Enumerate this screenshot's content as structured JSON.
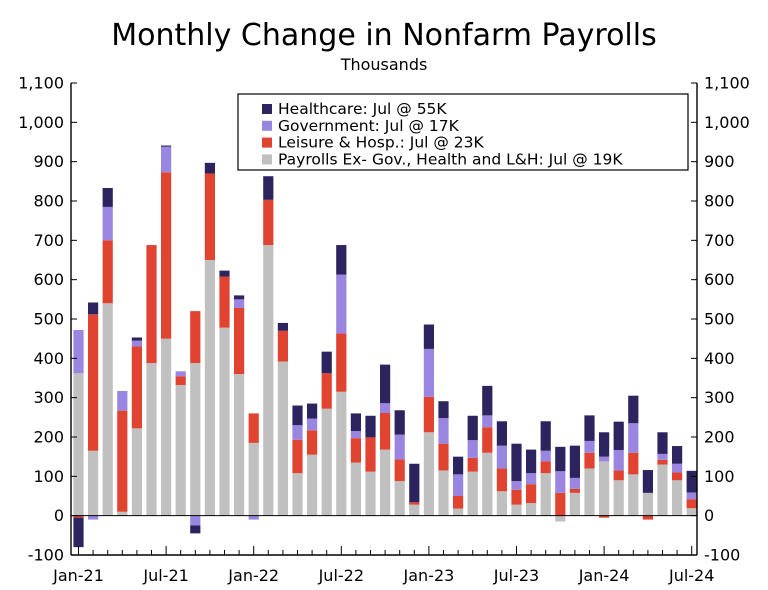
{
  "chart_data": {
    "type": "bar",
    "stacked": true,
    "title": "Monthly Change in Nonfarm Payrolls",
    "subtitle": "Thousands",
    "ylim": [
      -100,
      1100
    ],
    "yticks": [
      -100,
      0,
      100,
      200,
      300,
      400,
      500,
      600,
      700,
      800,
      900,
      1000,
      1100
    ],
    "ytick_labels": [
      "-100",
      "0",
      "100",
      "200",
      "300",
      "400",
      "500",
      "600",
      "700",
      "800",
      "900",
      "1,000",
      "1,100"
    ],
    "xtick_labels": [
      {
        "label": "Jan-21",
        "index": 0
      },
      {
        "label": "Jul-21",
        "index": 6
      },
      {
        "label": "Jan-22",
        "index": 12
      },
      {
        "label": "Jul-22",
        "index": 18
      },
      {
        "label": "Jan-23",
        "index": 24
      },
      {
        "label": "Jul-23",
        "index": 30
      },
      {
        "label": "Jan-24",
        "index": 36
      },
      {
        "label": "Jul-24",
        "index": 42
      }
    ],
    "grid": false,
    "legend_position": "top-center",
    "categories": [
      "2021-01",
      "2021-02",
      "2021-03",
      "2021-04",
      "2021-05",
      "2021-06",
      "2021-07",
      "2021-08",
      "2021-09",
      "2021-10",
      "2021-11",
      "2021-12",
      "2022-01",
      "2022-02",
      "2022-03",
      "2022-04",
      "2022-05",
      "2022-06",
      "2022-07",
      "2022-08",
      "2022-09",
      "2022-10",
      "2022-11",
      "2022-12",
      "2023-01",
      "2023-02",
      "2023-03",
      "2023-04",
      "2023-05",
      "2023-06",
      "2023-07",
      "2023-08",
      "2023-09",
      "2023-10",
      "2023-11",
      "2023-12",
      "2024-01",
      "2024-02",
      "2024-03",
      "2024-04",
      "2024-05",
      "2024-06",
      "2024-07"
    ],
    "series": [
      {
        "name": "Payrolls Ex- Gov., Health and L&H: Jul @ 19K",
        "color": "#c0c0c0",
        "values": [
          362,
          165,
          540,
          10,
          222,
          388,
          450,
          332,
          388,
          650,
          478,
          360,
          185,
          688,
          392,
          108,
          155,
          272,
          315,
          135,
          112,
          168,
          88,
          28,
          212,
          115,
          18,
          112,
          160,
          62,
          28,
          32,
          108,
          -15,
          58,
          120,
          138,
          90,
          105,
          58,
          130,
          90,
          19
        ]
      },
      {
        "name": "Leisure & Hosp.: Jul @ 23K",
        "color": "#e0432f",
        "values": [
          -5,
          347,
          160,
          257,
          208,
          300,
          423,
          22,
          132,
          220,
          130,
          168,
          75,
          115,
          78,
          85,
          62,
          90,
          148,
          62,
          87,
          93,
          55,
          6,
          90,
          68,
          32,
          35,
          65,
          58,
          38,
          48,
          30,
          58,
          10,
          40,
          -5,
          25,
          55,
          -10,
          12,
          20,
          23
        ]
      },
      {
        "name": "Government: Jul @ 17K",
        "color": "#9a86e0",
        "values": [
          110,
          -10,
          85,
          50,
          15,
          0,
          65,
          13,
          -25,
          0,
          0,
          22,
          -10,
          0,
          0,
          37,
          30,
          0,
          150,
          18,
          0,
          25,
          63,
          0,
          122,
          65,
          55,
          45,
          30,
          58,
          22,
          28,
          27,
          55,
          28,
          30,
          12,
          52,
          75,
          0,
          15,
          22,
          17
        ]
      },
      {
        "name": "Healthcare: Jul @ 55K",
        "color": "#2c245f",
        "values": [
          -75,
          30,
          48,
          0,
          8,
          0,
          3,
          0,
          -20,
          27,
          15,
          10,
          0,
          60,
          20,
          50,
          38,
          55,
          75,
          45,
          55,
          98,
          62,
          98,
          62,
          43,
          45,
          62,
          75,
          62,
          95,
          60,
          75,
          62,
          82,
          65,
          62,
          72,
          70,
          58,
          55,
          45,
          55
        ]
      }
    ]
  }
}
